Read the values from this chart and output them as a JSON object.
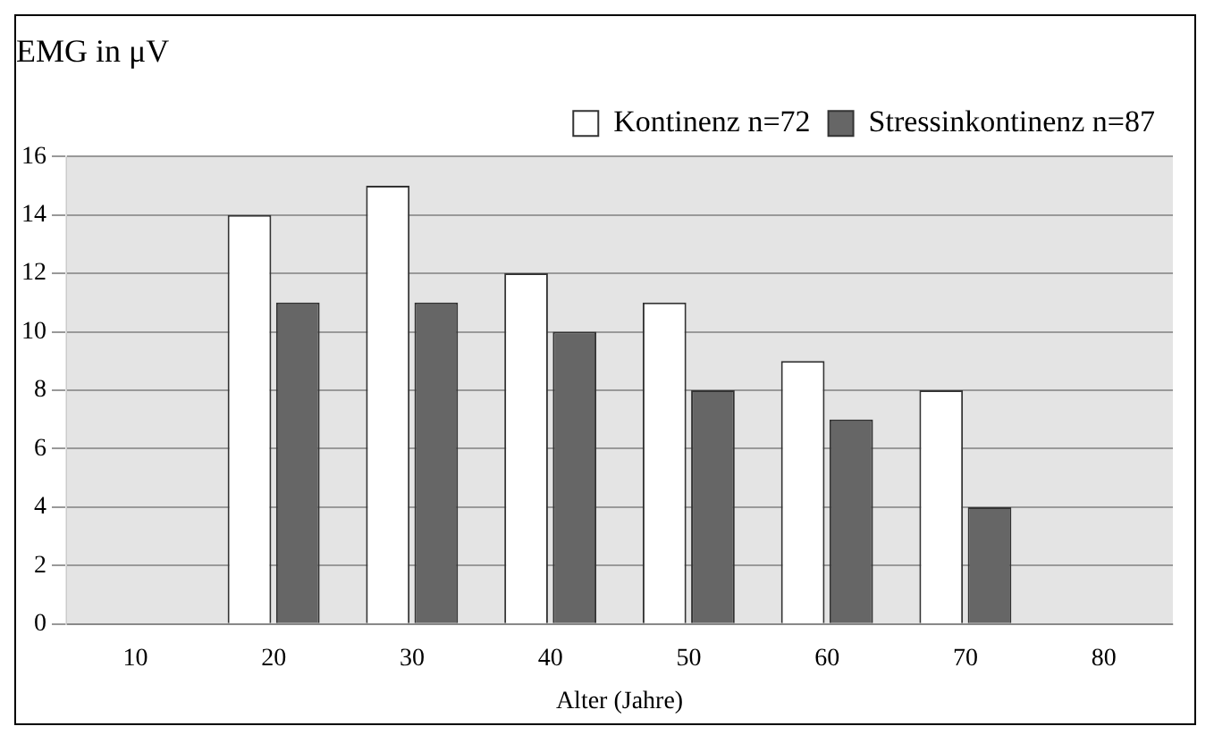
{
  "chart_data": {
    "type": "bar",
    "title": "EMG in μV",
    "xlabel": "Alter (Jahre)",
    "categories": [
      "10",
      "20",
      "30",
      "40",
      "50",
      "60",
      "70",
      "80"
    ],
    "series": [
      {
        "name": "Kontinenz n=72",
        "color": "#ffffff",
        "values": [
          null,
          14,
          15,
          12,
          11,
          9,
          8,
          null
        ]
      },
      {
        "name": "Stressinkontinenz n=87",
        "color": "#666666",
        "values": [
          null,
          11,
          11,
          10,
          8,
          7,
          4,
          null
        ]
      }
    ],
    "ylim": [
      0,
      16
    ],
    "yticks": [
      0,
      2,
      4,
      6,
      8,
      10,
      12,
      14,
      16
    ],
    "grid": "y",
    "legend": "top right"
  }
}
